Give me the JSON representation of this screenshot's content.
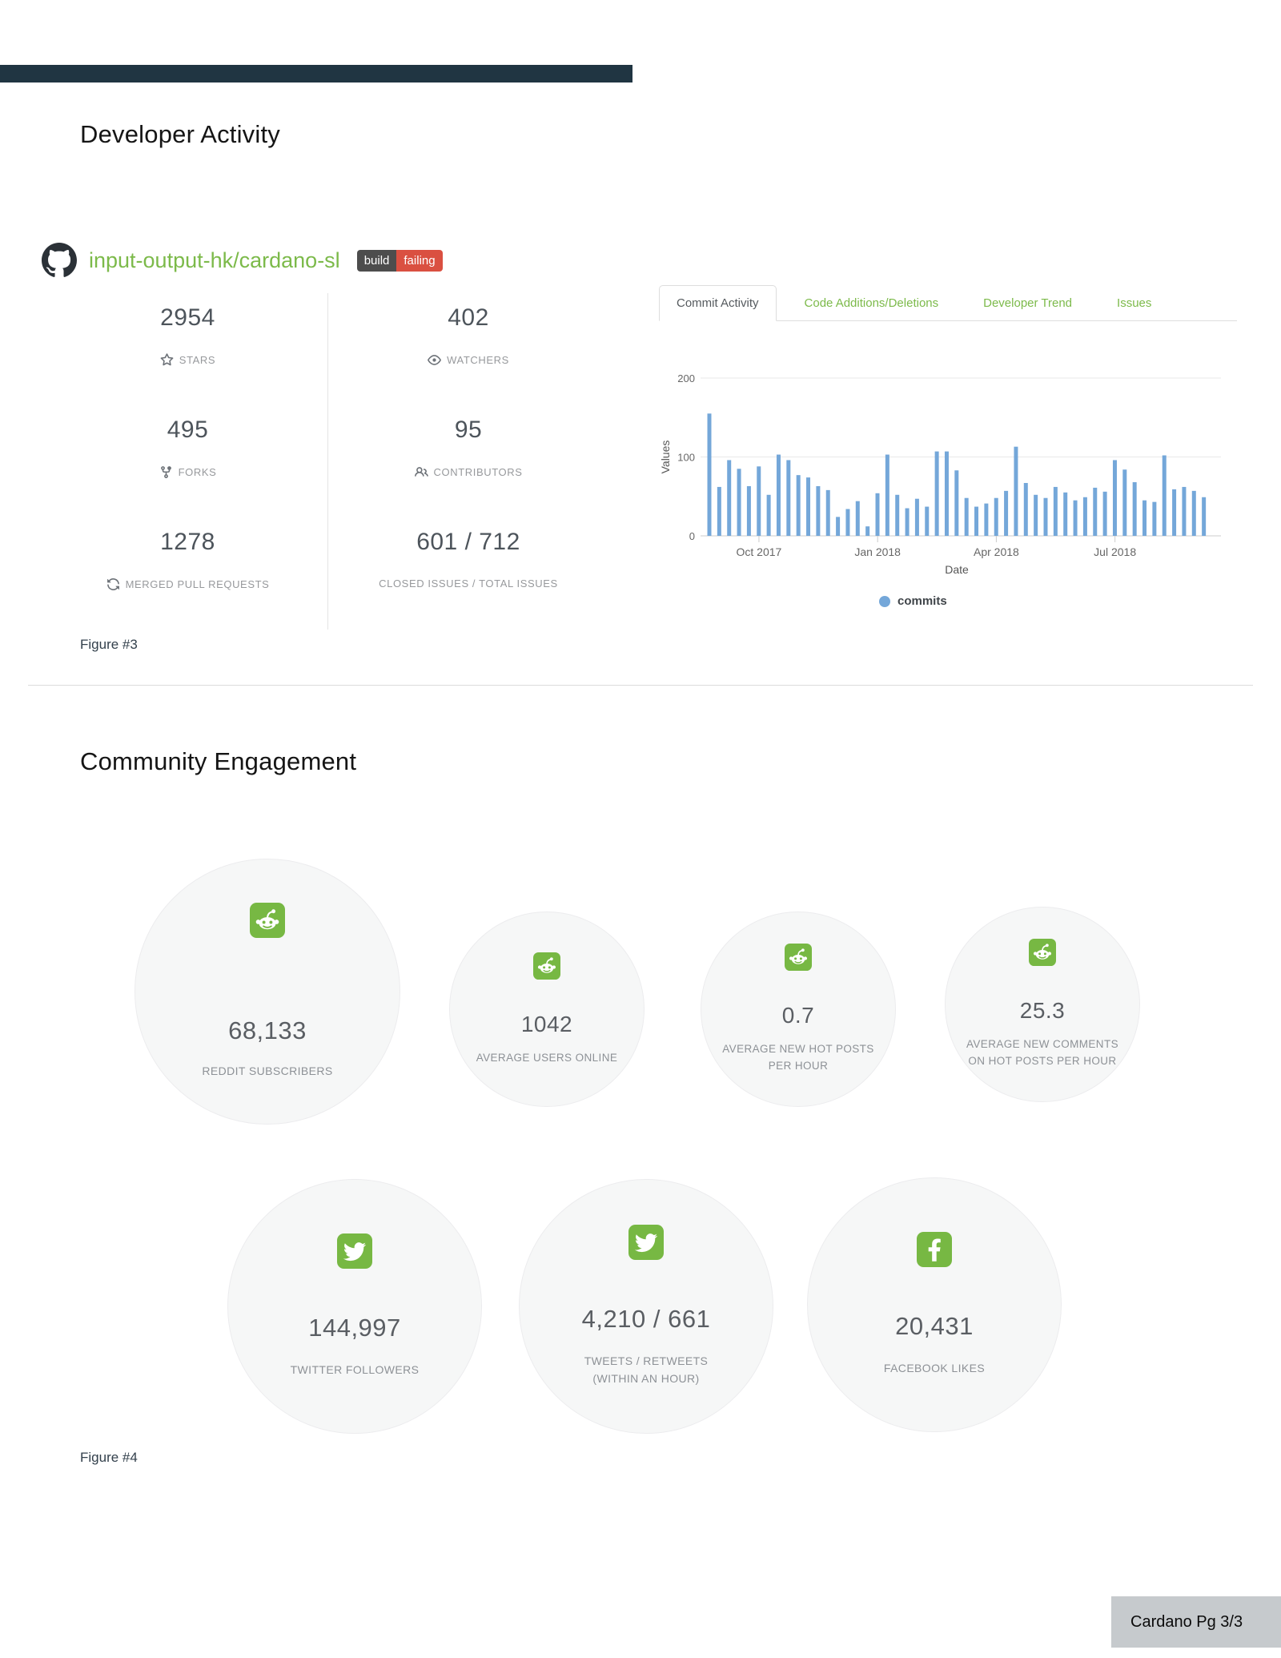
{
  "developer_activity": {
    "title": "Developer Activity",
    "figure_caption": "Figure #3",
    "github": {
      "icon": "github-octocat-icon",
      "repo": "input-output-hk/cardano-sl",
      "badge": {
        "left": "build",
        "right": "failing",
        "left_color": "#4d4d4d",
        "right_color": "#da5041"
      },
      "stats": [
        {
          "value": "2954",
          "label": "STARS",
          "icon": "star-icon"
        },
        {
          "value": "402",
          "label": "WATCHERS",
          "icon": "eye-icon"
        },
        {
          "value": "495",
          "label": "FORKS",
          "icon": "fork-icon"
        },
        {
          "value": "95",
          "label": "CONTRIBUTORS",
          "icon": "people-icon"
        },
        {
          "value": "1278",
          "label": "MERGED PULL REQUESTS",
          "icon": "merge-loop-icon"
        },
        {
          "value": "601 / 712",
          "label": "CLOSED ISSUES / TOTAL ISSUES",
          "icon": "none"
        }
      ]
    },
    "tabs": [
      {
        "label": "Commit Activity",
        "active": true
      },
      {
        "label": "Code Additions/Deletions",
        "active": false
      },
      {
        "label": "Developer Trend",
        "active": false
      },
      {
        "label": "Issues",
        "active": false
      }
    ]
  },
  "chart_data": {
    "type": "bar",
    "title": "",
    "xlabel": "Date",
    "ylabel": "Values",
    "ylim": [
      0,
      200
    ],
    "yticks": [
      0,
      100,
      200
    ],
    "grid": true,
    "legend_position": "bottom",
    "series": [
      {
        "name": "commits",
        "color": "#74a7d9",
        "values": [
          155,
          62,
          96,
          85,
          63,
          88,
          52,
          103,
          96,
          77,
          74,
          63,
          58,
          24,
          34,
          44,
          12,
          54,
          103,
          52,
          35,
          47,
          37,
          107,
          107,
          83,
          48,
          37,
          41,
          48,
          57,
          113,
          67,
          52,
          48,
          62,
          55,
          45,
          49,
          61,
          56,
          96,
          84,
          68,
          45,
          43,
          102,
          59,
          62,
          57,
          49
        ]
      }
    ],
    "x_ticks": [
      {
        "index": 5,
        "label": "Oct 2017"
      },
      {
        "index": 17,
        "label": "Jan 2018"
      },
      {
        "index": 29,
        "label": "Apr 2018"
      },
      {
        "index": 41,
        "label": "Jul 2018"
      }
    ]
  },
  "community": {
    "title": "Community Engagement",
    "figure_caption": "Figure #4",
    "circles_row1": [
      {
        "icon": "reddit-icon",
        "value": "68,133",
        "label": "REDDIT SUBSCRIBERS"
      },
      {
        "icon": "reddit-icon",
        "value": "1042",
        "label": "AVERAGE USERS ONLINE"
      },
      {
        "icon": "reddit-icon",
        "value": "0.7",
        "label": "AVERAGE NEW HOT POSTS PER HOUR"
      },
      {
        "icon": "reddit-icon",
        "value": "25.3",
        "label": "AVERAGE NEW COMMENTS ON HOT POSTS PER HOUR"
      }
    ],
    "circles_row2": [
      {
        "icon": "twitter-icon",
        "value": "144,997",
        "label": "TWITTER FOLLOWERS"
      },
      {
        "icon": "twitter-icon",
        "value": "4,210 / 661",
        "label": "TWEETS / RETWEETS (WITHIN AN HOUR)"
      },
      {
        "icon": "facebook-icon",
        "value": "20,431",
        "label": "FACEBOOK LIKES"
      }
    ]
  },
  "footer": {
    "label": "Cardano Pg 3/3"
  },
  "colors": {
    "topbar": "#203542",
    "brand_green": "#7cba4a",
    "icon_green": "#77b843",
    "bar_blue": "#74a7d9",
    "footer_bg": "#c6cacd"
  }
}
